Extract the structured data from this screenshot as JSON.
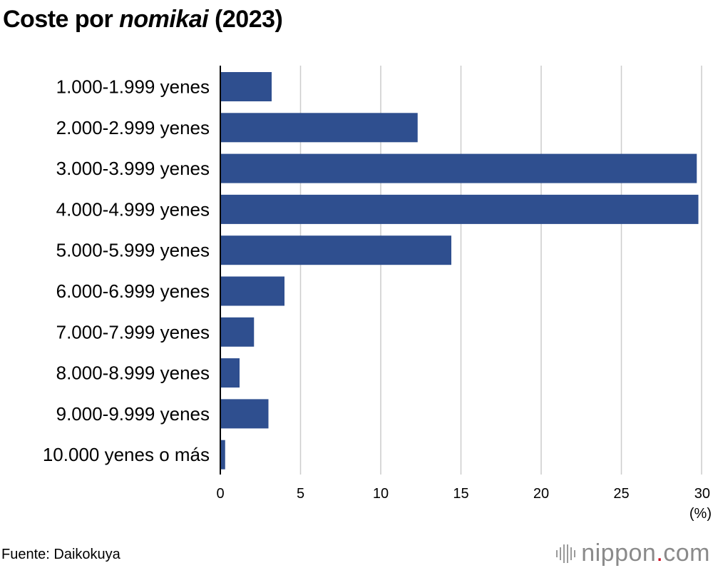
{
  "title": {
    "prefix": "Coste por ",
    "italic": "nomikai",
    "suffix": " (2023)"
  },
  "chart_data": {
    "type": "bar",
    "orientation": "horizontal",
    "categories": [
      "1.000-1.999 yenes",
      "2.000-2.999 yenes",
      "3.000-3.999 yenes",
      "4.000-4.999 yenes",
      "5.000-5.999 yenes",
      "6.000-6.999 yenes",
      "7.000-7.999 yenes",
      "8.000-8.999 yenes",
      "9.000-9.999 yenes",
      "10.000 yenes o más"
    ],
    "values": [
      3.2,
      12.3,
      29.7,
      29.8,
      14.4,
      4.0,
      2.1,
      1.2,
      3.0,
      0.3
    ],
    "xlim": [
      0,
      30
    ],
    "xticks": [
      0,
      5,
      10,
      15,
      20,
      25,
      30
    ],
    "xunit": "(%)",
    "grid": true,
    "bar_color": "#2f4f8f",
    "grid_color": "#cccccc"
  },
  "source": "Fuente: Daikokuya",
  "logo": {
    "text_main": "nippon",
    "text_dot": ".",
    "text_end": "com"
  }
}
